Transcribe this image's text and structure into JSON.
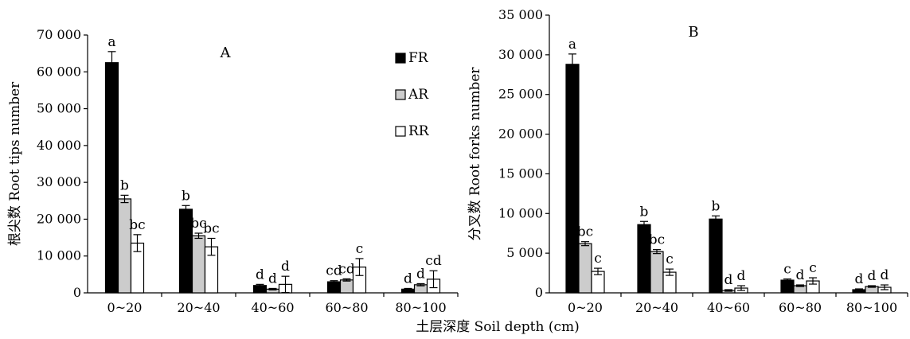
{
  "figure": {
    "xlabel": "土层深度 Soil depth (cm)"
  },
  "chart_data": [
    {
      "type": "bar",
      "panel_label": "A",
      "ylabel": "根尖数 Root tips number",
      "ylim": [
        0,
        70000
      ],
      "yticks": [
        "0",
        "10 000",
        "20 000",
        "30 000",
        "40 000",
        "50 000",
        "60 000",
        "70 000"
      ],
      "categories": [
        "0~20",
        "20~40",
        "40~60",
        "60~80",
        "80~100"
      ],
      "legend": "top-right",
      "series": [
        {
          "name": "FR",
          "color": "#000000",
          "values": [
            62500,
            22700,
            2000,
            3000,
            1000
          ],
          "errors": [
            3000,
            1000,
            300,
            300,
            200
          ],
          "labels": [
            "a",
            "b",
            "d",
            "cd",
            "d"
          ]
        },
        {
          "name": "AR",
          "color": "#cccccc",
          "values": [
            25500,
            15500,
            1000,
            3500,
            2200
          ],
          "errors": [
            1000,
            700,
            200,
            300,
            300
          ],
          "labels": [
            "b",
            "bc",
            "d",
            "cd",
            "d"
          ]
        },
        {
          "name": "RR",
          "color": "#ffffff",
          "values": [
            13500,
            12500,
            2300,
            7000,
            3700
          ],
          "errors": [
            2300,
            2300,
            2200,
            2300,
            2300
          ],
          "labels": [
            "bc",
            "bc",
            "d",
            "c",
            "cd"
          ]
        }
      ]
    },
    {
      "type": "bar",
      "panel_label": "B",
      "ylabel": "分叉数 Root forks number",
      "ylim": [
        0,
        35000
      ],
      "yticks": [
        "0",
        "5 000",
        "10 000",
        "15 000",
        "20 000",
        "25 000",
        "30 000",
        "35 000"
      ],
      "categories": [
        "0~20",
        "20~40",
        "40~60",
        "60~80",
        "80~100"
      ],
      "series": [
        {
          "name": "FR",
          "color": "#000000",
          "values": [
            28800,
            8600,
            9300,
            1600,
            400
          ],
          "errors": [
            1300,
            400,
            400,
            150,
            100
          ],
          "labels": [
            "a",
            "b",
            "b",
            "c",
            "d"
          ]
        },
        {
          "name": "AR",
          "color": "#cccccc",
          "values": [
            6200,
            5200,
            300,
            900,
            800
          ],
          "errors": [
            250,
            250,
            100,
            100,
            100
          ],
          "labels": [
            "bc",
            "bc",
            "d",
            "d",
            "d"
          ]
        },
        {
          "name": "RR",
          "color": "#ffffff",
          "values": [
            2700,
            2600,
            600,
            1500,
            700
          ],
          "errors": [
            400,
            400,
            300,
            400,
            300
          ],
          "labels": [
            "c",
            "c",
            "d",
            "c",
            "d"
          ]
        }
      ]
    }
  ]
}
